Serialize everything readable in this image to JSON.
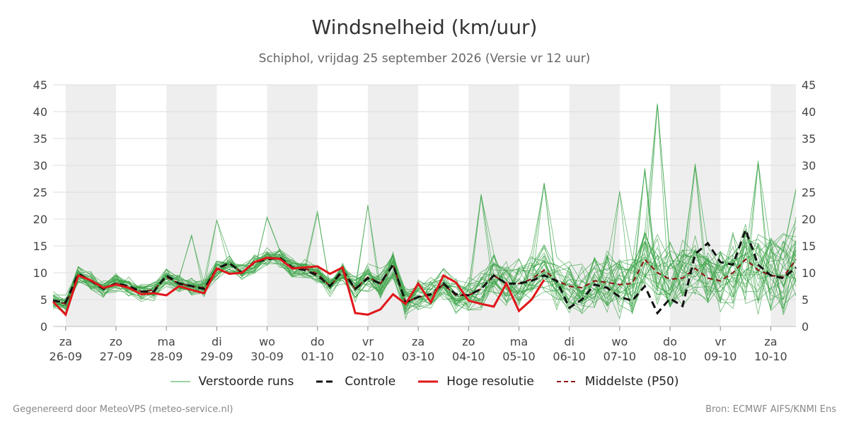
{
  "header": {
    "title": "Windsnelheid (km/uur)",
    "subtitle": "Schiphol, vrijdag 25 september 2026 (Versie vr 12 uur)"
  },
  "footer": {
    "left": "Gegenereerd door MeteoVPS (meteo-service.nl)",
    "right": "Bron: ECMWF AIFS/KNMI Ens"
  },
  "colors": {
    "ensemble": "#3aa345",
    "control": "#111111",
    "high_res": "#e0161b",
    "median": "#8b1a1a",
    "day_shade": "#eeeeee",
    "grid": "#dddddd"
  },
  "chart_data": {
    "type": "line",
    "title": "Windsnelheid (km/uur)",
    "subtitle": "Schiphol, vrijdag 25 september 2026 (Versie vr 12 uur)",
    "ylim": [
      0,
      45
    ],
    "yticks": [
      0,
      5,
      10,
      15,
      20,
      25,
      30,
      35,
      40,
      45
    ],
    "y_axis_both_sides": true,
    "grid": true,
    "legend_position": "bottom",
    "time_range_days": [
      -0.25,
      14.5
    ],
    "day_ticks": [
      {
        "day": "za",
        "date": "26-09",
        "t": 0
      },
      {
        "day": "zo",
        "date": "27-09",
        "t": 1
      },
      {
        "day": "ma",
        "date": "28-09",
        "t": 2
      },
      {
        "day": "di",
        "date": "29-09",
        "t": 3
      },
      {
        "day": "wo",
        "date": "30-09",
        "t": 4
      },
      {
        "day": "do",
        "date": "01-10",
        "t": 5
      },
      {
        "day": "vr",
        "date": "02-10",
        "t": 6
      },
      {
        "day": "za",
        "date": "03-10",
        "t": 7
      },
      {
        "day": "zo",
        "date": "04-10",
        "t": 8
      },
      {
        "day": "ma",
        "date": "05-10",
        "t": 9
      },
      {
        "day": "di",
        "date": "06-10",
        "t": 10
      },
      {
        "day": "wo",
        "date": "07-10",
        "t": 11
      },
      {
        "day": "do",
        "date": "08-10",
        "t": 12
      },
      {
        "day": "vr",
        "date": "09-10",
        "t": 13
      },
      {
        "day": "za",
        "date": "10-10",
        "t": 14
      }
    ],
    "legend": [
      {
        "key": "ensemble",
        "label": "Verstoorde runs"
      },
      {
        "key": "control",
        "label": "Controle"
      },
      {
        "key": "high_res",
        "label": "Hoge resolutie"
      },
      {
        "key": "median",
        "label": "Middelste (P50)"
      }
    ],
    "control": [
      [
        -0.25,
        4.8
      ],
      [
        0,
        4.5
      ],
      [
        0.25,
        9.8
      ],
      [
        0.5,
        8.5
      ],
      [
        0.75,
        7
      ],
      [
        1,
        8
      ],
      [
        1.25,
        7.5
      ],
      [
        1.5,
        6.5
      ],
      [
        1.75,
        6.5
      ],
      [
        2,
        9.5
      ],
      [
        2.25,
        8
      ],
      [
        2.5,
        7.5
      ],
      [
        2.75,
        7
      ],
      [
        3,
        10.8
      ],
      [
        3.25,
        11.8
      ],
      [
        3.5,
        10
      ],
      [
        3.75,
        12
      ],
      [
        4,
        12.5
      ],
      [
        4.25,
        12.8
      ],
      [
        4.5,
        11
      ],
      [
        4.75,
        10.5
      ],
      [
        5,
        9.5
      ],
      [
        5.25,
        7.5
      ],
      [
        5.5,
        10.5
      ],
      [
        5.75,
        7
      ],
      [
        6,
        9
      ],
      [
        6.25,
        8
      ],
      [
        6.5,
        11.5
      ],
      [
        6.75,
        4.5
      ],
      [
        7,
        5.5
      ],
      [
        7.25,
        6
      ],
      [
        7.5,
        8
      ],
      [
        7.75,
        6
      ],
      [
        8,
        5.8
      ],
      [
        8.25,
        7
      ],
      [
        8.5,
        9.5
      ],
      [
        8.75,
        8
      ],
      [
        9,
        8
      ],
      [
        9.25,
        8.5
      ],
      [
        9.5,
        9.5
      ],
      [
        9.75,
        8.5
      ],
      [
        10,
        3.5
      ],
      [
        10.25,
        5
      ],
      [
        10.5,
        7.8
      ],
      [
        10.75,
        7.2
      ],
      [
        11,
        5.5
      ],
      [
        11.25,
        4.8
      ],
      [
        11.5,
        7.5
      ],
      [
        11.75,
        2.5
      ],
      [
        12,
        5.2
      ],
      [
        12.25,
        3.8
      ],
      [
        12.5,
        13.5
      ],
      [
        12.75,
        15.5
      ],
      [
        13,
        12
      ],
      [
        13.25,
        11.5
      ],
      [
        13.5,
        18
      ],
      [
        13.75,
        11.5
      ],
      [
        14,
        9.5
      ],
      [
        14.25,
        9
      ],
      [
        14.5,
        11
      ]
    ],
    "high_res": [
      [
        -0.25,
        4.6
      ],
      [
        0,
        2.2
      ],
      [
        0.25,
        9.5
      ],
      [
        0.5,
        8.6
      ],
      [
        0.75,
        7.2
      ],
      [
        1,
        7.8
      ],
      [
        1.25,
        7.2
      ],
      [
        1.5,
        6
      ],
      [
        1.75,
        6.2
      ],
      [
        2,
        5.8
      ],
      [
        2.25,
        7.5
      ],
      [
        2.5,
        6.8
      ],
      [
        2.75,
        6.2
      ],
      [
        3,
        10.8
      ],
      [
        3.25,
        9.8
      ],
      [
        3.5,
        10
      ],
      [
        3.75,
        12
      ],
      [
        4,
        12.8
      ],
      [
        4.25,
        12.6
      ],
      [
        4.5,
        10.8
      ],
      [
        4.75,
        11
      ],
      [
        5,
        11.2
      ],
      [
        5.25,
        9.8
      ],
      [
        5.5,
        11
      ],
      [
        5.75,
        2.5
      ],
      [
        6,
        2.2
      ],
      [
        6.25,
        3.2
      ],
      [
        6.5,
        6
      ],
      [
        6.75,
        4.2
      ],
      [
        7,
        8
      ],
      [
        7.25,
        4.5
      ],
      [
        7.5,
        9.5
      ],
      [
        7.75,
        8.2
      ],
      [
        8,
        4.8
      ],
      [
        8.25,
        4.2
      ],
      [
        8.5,
        3.7
      ],
      [
        8.75,
        8
      ],
      [
        9,
        2.9
      ],
      [
        9.25,
        5
      ],
      [
        9.5,
        8.7
      ]
    ],
    "median": [
      [
        -0.25,
        4.8
      ],
      [
        0,
        4.2
      ],
      [
        0.25,
        9.5
      ],
      [
        0.5,
        8.5
      ],
      [
        0.75,
        7
      ],
      [
        1,
        8
      ],
      [
        1.25,
        7.5
      ],
      [
        1.5,
        6.5
      ],
      [
        1.75,
        6.8
      ],
      [
        2,
        9.2
      ],
      [
        2.25,
        8
      ],
      [
        2.5,
        7.5
      ],
      [
        2.75,
        7.2
      ],
      [
        3,
        10.5
      ],
      [
        3.25,
        11.8
      ],
      [
        3.5,
        10
      ],
      [
        3.75,
        11.8
      ],
      [
        4,
        12.8
      ],
      [
        4.25,
        12.6
      ],
      [
        4.5,
        11
      ],
      [
        4.75,
        10.8
      ],
      [
        5,
        9.8
      ],
      [
        5.25,
        7.5
      ],
      [
        5.5,
        10.2
      ],
      [
        5.75,
        7
      ],
      [
        6,
        9.2
      ],
      [
        6.25,
        8
      ],
      [
        6.5,
        11.5
      ],
      [
        6.75,
        4.5
      ],
      [
        7,
        5.5
      ],
      [
        7.25,
        5.8
      ],
      [
        7.5,
        7.8
      ],
      [
        7.75,
        5.8
      ],
      [
        8,
        5.8
      ],
      [
        8.25,
        7
      ],
      [
        8.5,
        9.5
      ],
      [
        8.75,
        8
      ],
      [
        9,
        8
      ],
      [
        9.25,
        8.8
      ],
      [
        9.5,
        10.5
      ],
      [
        9.75,
        8.5
      ],
      [
        10,
        7.5
      ],
      [
        10.25,
        7.2
      ],
      [
        10.5,
        8.5
      ],
      [
        10.75,
        8.2
      ],
      [
        11,
        7.8
      ],
      [
        11.25,
        8
      ],
      [
        11.5,
        12.5
      ],
      [
        11.75,
        10
      ],
      [
        12,
        8.8
      ],
      [
        12.25,
        9
      ],
      [
        12.5,
        10.8
      ],
      [
        12.75,
        9
      ],
      [
        13,
        8.5
      ],
      [
        13.25,
        10
      ],
      [
        13.5,
        12.5
      ],
      [
        13.75,
        10.5
      ],
      [
        14,
        9.5
      ],
      [
        14.25,
        9.2
      ],
      [
        14.5,
        12.5
      ]
    ],
    "ensemble_peaks": [
      [
        11.75,
        42.2
      ],
      [
        11.5,
        29.5
      ],
      [
        13.75,
        31
      ],
      [
        9.5,
        27
      ],
      [
        8.25,
        25.2
      ],
      [
        12.5,
        30.5
      ],
      [
        14.5,
        26
      ],
      [
        2.5,
        17.5
      ],
      [
        3,
        20
      ],
      [
        4,
        20.5
      ],
      [
        5,
        21.7
      ],
      [
        6,
        23.2
      ],
      [
        11,
        25.6
      ]
    ],
    "ensemble_members": 32
  }
}
